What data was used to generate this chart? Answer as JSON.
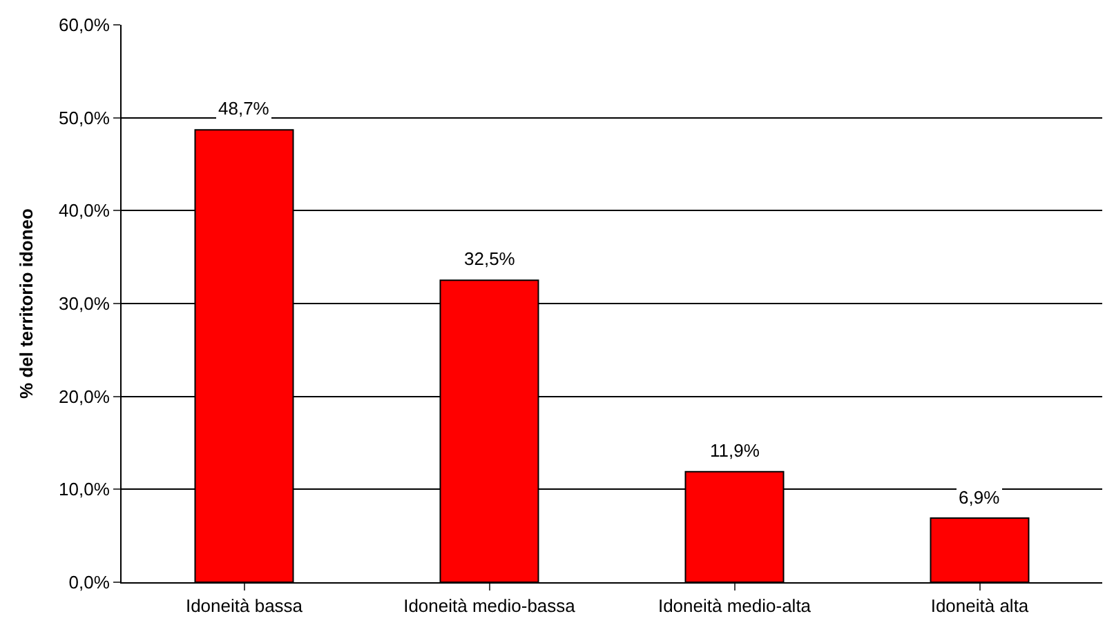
{
  "chart_data": {
    "type": "bar",
    "ylabel": "% del territorio idoneo",
    "categories": [
      "Idoneità bassa",
      "Idoneità medio-bassa",
      "Idoneità medio-alta",
      "Idoneità alta"
    ],
    "values": [
      48.7,
      32.5,
      11.9,
      6.9
    ],
    "color": "#ff0000",
    "value_labels": [
      "48,7%",
      "32,5%",
      "11,9%",
      "6,9%"
    ],
    "ylim": [
      0,
      60
    ],
    "yticks": [
      {
        "value": 0,
        "label": "0,0%"
      },
      {
        "value": 10,
        "label": "10,0%"
      },
      {
        "value": 20,
        "label": "20,0%"
      },
      {
        "value": 30,
        "label": "30,0%"
      },
      {
        "value": 40,
        "label": "40,0%"
      },
      {
        "value": 50,
        "label": "50,0%"
      },
      {
        "value": 60,
        "label": "60,0%"
      }
    ],
    "grid": "y",
    "legend": false
  }
}
